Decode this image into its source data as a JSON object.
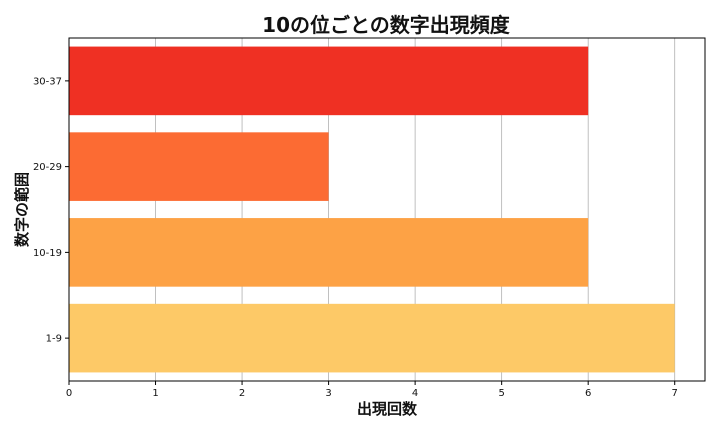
{
  "chart_data": {
    "type": "bar",
    "orientation": "horizontal",
    "title": "10の位ごとの数字出現頻度",
    "xlabel": "出現回数",
    "ylabel": "数字の範囲",
    "categories": [
      "1-9",
      "10-19",
      "20-29",
      "30-37"
    ],
    "values": [
      7,
      6,
      3,
      6
    ],
    "colors": [
      "#fdc967",
      "#fda245",
      "#fc6b33",
      "#ef3023"
    ],
    "xlim": [
      0,
      7.35
    ],
    "xticks": [
      0,
      1,
      2,
      3,
      4,
      5,
      6,
      7
    ],
    "grid": "vertical"
  }
}
